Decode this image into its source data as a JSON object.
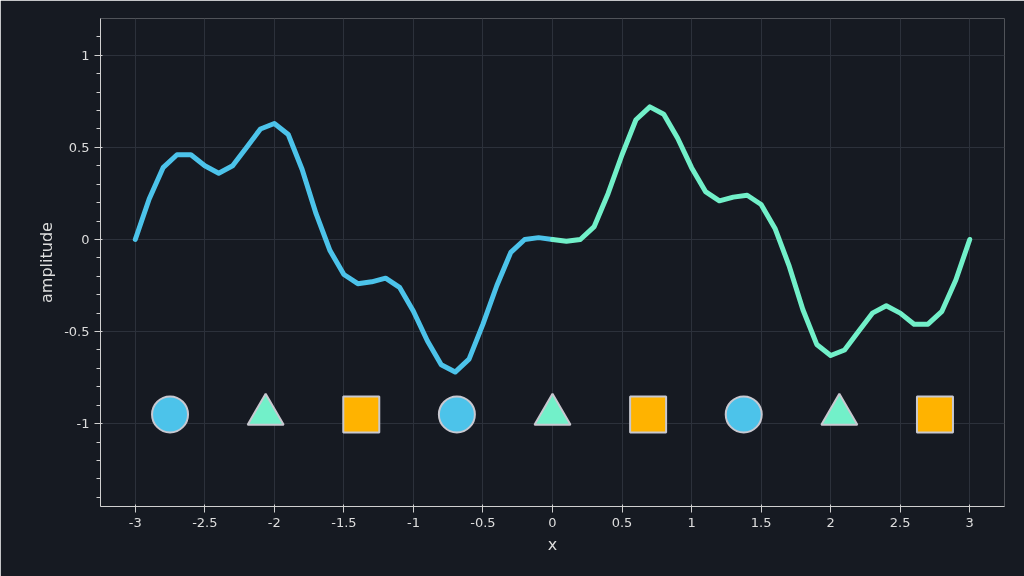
{
  "chart_data": {
    "type": "line",
    "xlabel": "x",
    "ylabel": "amplitude",
    "xlim": [
      -3.25,
      3.25
    ],
    "ylim": [
      -1.45,
      1.2
    ],
    "xticks": [
      -3,
      -2.5,
      -2,
      -1.5,
      -1,
      -0.5,
      0,
      0.5,
      1,
      1.5,
      2,
      2.5,
      3
    ],
    "yticks": [
      -1,
      -0.5,
      0,
      0.5,
      1
    ],
    "grid": true,
    "marker": "none",
    "series": [
      {
        "color": "#4cc3ea",
        "x": [
          -3,
          -2.9,
          -2.8,
          -2.7,
          -2.6,
          -2.5,
          -2.4,
          -2.3,
          -2.2,
          -2.1,
          -2,
          -1.9,
          -1.8,
          -1.7,
          -1.6,
          -1.5,
          -1.4,
          -1.3,
          -1.2,
          -1.1,
          -1,
          -0.9,
          -0.8,
          -0.7,
          -0.6,
          -0.5,
          -0.4,
          -0.3,
          -0.2,
          -0.1,
          0
        ],
        "values": [
          0,
          0.22,
          0.39,
          0.46,
          0.46,
          0.4,
          0.36,
          0.4,
          0.5,
          0.6,
          0.63,
          0.57,
          0.38,
          0.14,
          -0.06,
          -0.19,
          -0.24,
          -0.23,
          -0.21,
          -0.26,
          -0.39,
          -0.55,
          -0.68,
          -0.72,
          -0.65,
          -0.46,
          -0.25,
          -0.07,
          0.0,
          0.01,
          0
        ]
      },
      {
        "color": "#72f0c9",
        "x": [
          0,
          0.1,
          0.2,
          0.3,
          0.4,
          0.5,
          0.6,
          0.7,
          0.8,
          0.9,
          1,
          1.1,
          1.2,
          1.3,
          1.4,
          1.5,
          1.6,
          1.7,
          1.8,
          1.9,
          2,
          2.1,
          2.2,
          2.3,
          2.4,
          2.5,
          2.6,
          2.7,
          2.8,
          2.9,
          3
        ],
        "values": [
          0,
          -0.01,
          0.0,
          0.07,
          0.25,
          0.46,
          0.65,
          0.72,
          0.68,
          0.55,
          0.39,
          0.26,
          0.21,
          0.23,
          0.24,
          0.19,
          0.06,
          -0.14,
          -0.38,
          -0.57,
          -0.63,
          -0.6,
          -0.5,
          -0.4,
          -0.36,
          -0.4,
          -0.46,
          -0.46,
          -0.39,
          -0.22,
          0
        ]
      },
      {
        "type": "scatter",
        "marker": "circle",
        "color": "#4cc3ea",
        "x": [
          -2.75,
          -0.6875,
          1.375
        ],
        "values": [
          -0.95,
          -0.95,
          -0.95
        ]
      },
      {
        "type": "scatter",
        "marker": "triangle",
        "color": "#72f0c9",
        "x": [
          -2.0625,
          0,
          2.0625
        ],
        "values": [
          -0.95,
          -0.95,
          -0.95
        ]
      },
      {
        "type": "scatter",
        "marker": "square",
        "color": "#ffb300",
        "x": [
          -1.375,
          0.6875,
          2.75
        ],
        "values": [
          -0.95,
          -0.95,
          -0.95
        ]
      }
    ]
  }
}
